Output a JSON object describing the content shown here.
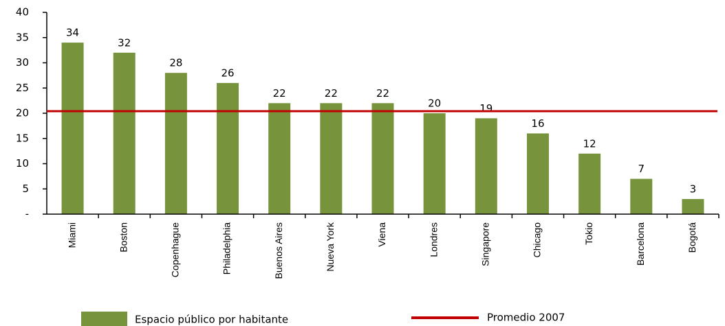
{
  "chart_data": {
    "type": "bar",
    "categories": [
      "Miami",
      "Boston",
      "Copenhague",
      "Philadelphia",
      "Buenos Aires",
      "Nueva York",
      "Viena",
      "Londres",
      "Singapore",
      "Chicago",
      "Tokio",
      "Barcelona",
      "Bogotá"
    ],
    "series": [
      {
        "name": "Espacio público por habitante",
        "color": "#77933c",
        "values": [
          34,
          32,
          28,
          26,
          22,
          22,
          22,
          20,
          19,
          16,
          12,
          7,
          3
        ]
      }
    ],
    "reference_line": {
      "name": "Promedio 2007",
      "value": 20.4,
      "color": "#c00000"
    },
    "ylim": [
      0,
      40
    ],
    "yticks": [
      {
        "value": 0,
        "label": "-"
      },
      5,
      10,
      15,
      20,
      25,
      30,
      35,
      40
    ],
    "grid": false
  }
}
